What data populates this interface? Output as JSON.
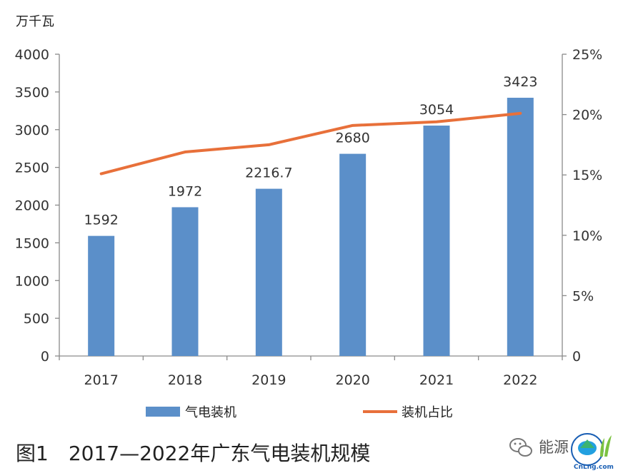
{
  "unit_label": "万千瓦",
  "caption": "图1　2017—2022年广东气电装机规模",
  "watermark": {
    "text": "能源",
    "logo_text": "CnLng.com",
    "icon": "wechat-icon"
  },
  "chart_data": {
    "type": "bar",
    "categories": [
      "2017",
      "2018",
      "2019",
      "2020",
      "2021",
      "2022"
    ],
    "series": [
      {
        "name": "气电装机",
        "type": "bar",
        "axis": "left",
        "values": [
          1592,
          1972,
          2216.7,
          2680,
          3054,
          3423
        ],
        "value_labels": [
          "1592",
          "1972",
          "2216.7",
          "2680",
          "3054",
          "3423"
        ],
        "color": "#5b8fc9"
      },
      {
        "name": "装机占比",
        "type": "line",
        "axis": "right",
        "values": [
          15.1,
          16.9,
          17.5,
          19.1,
          19.4,
          20.1
        ],
        "color": "#e8703a"
      }
    ],
    "y_left": {
      "min": 0,
      "max": 4000,
      "ticks": [
        0,
        500,
        1000,
        1500,
        2000,
        2500,
        3000,
        3500,
        4000
      ],
      "tick_labels": [
        "0",
        "500",
        "1000",
        "1500",
        "2000",
        "2500",
        "3000",
        "3500",
        "4000"
      ]
    },
    "y_right": {
      "min": 0,
      "max": 25,
      "ticks": [
        0,
        5,
        10,
        15,
        20,
        25
      ],
      "tick_labels": [
        "0",
        "5%",
        "10%",
        "15%",
        "20%",
        "25%"
      ]
    },
    "grid": false,
    "legend_position": "bottom"
  }
}
